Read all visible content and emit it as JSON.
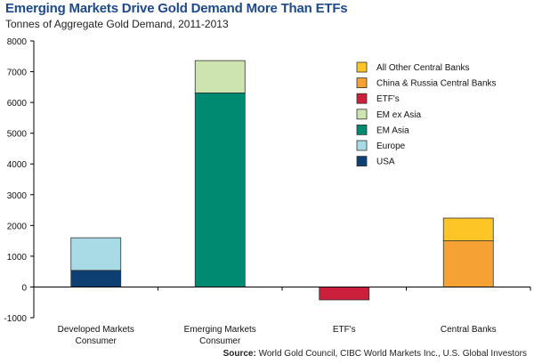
{
  "title": "Emerging Markets Drive Gold Demand More Than ETFs",
  "subtitle": "Tonnes of Aggregate Gold Demand, 2011-2013",
  "source": {
    "label": "Source:",
    "text": "World Gold Council, CIBC World Markets Inc., U.S. Global Investors"
  },
  "chart_data": {
    "type": "bar",
    "stacked": true,
    "categories": [
      [
        "Developed Markets",
        "Consumer"
      ],
      [
        "Emerging Markets",
        "Consumer"
      ],
      [
        "ETF's"
      ],
      [
        "Central Banks"
      ]
    ],
    "ylim": [
      -1000,
      8000
    ],
    "yticks": [
      -1000,
      0,
      1000,
      2000,
      3000,
      4000,
      5000,
      6000,
      7000,
      8000
    ],
    "grid": false,
    "legend_position": "right",
    "series": [
      {
        "name": "USA",
        "color": "#0e3f73",
        "values": [
          540,
          0,
          0,
          0
        ]
      },
      {
        "name": "Europe",
        "color": "#a9dbe7",
        "values": [
          1060,
          0,
          0,
          0
        ]
      },
      {
        "name": "EM Asia",
        "color": "#008a72",
        "values": [
          0,
          6310,
          0,
          0
        ]
      },
      {
        "name": "EM ex Asia",
        "color": "#cde3b0",
        "values": [
          0,
          1050,
          0,
          0
        ]
      },
      {
        "name": "ETF's",
        "color": "#cc1f3c",
        "values": [
          0,
          0,
          -420,
          0
        ]
      },
      {
        "name": "China & Russia Central Banks",
        "color": "#f5a133",
        "values": [
          0,
          0,
          0,
          1500
        ]
      },
      {
        "name": "All Other Central Banks",
        "color": "#fdc526",
        "values": [
          0,
          0,
          0,
          740
        ]
      }
    ],
    "legend_order": [
      "All Other Central Banks",
      "China & Russia Central Banks",
      "ETF's",
      "EM ex Asia",
      "EM Asia",
      "Europe",
      "USA"
    ]
  }
}
